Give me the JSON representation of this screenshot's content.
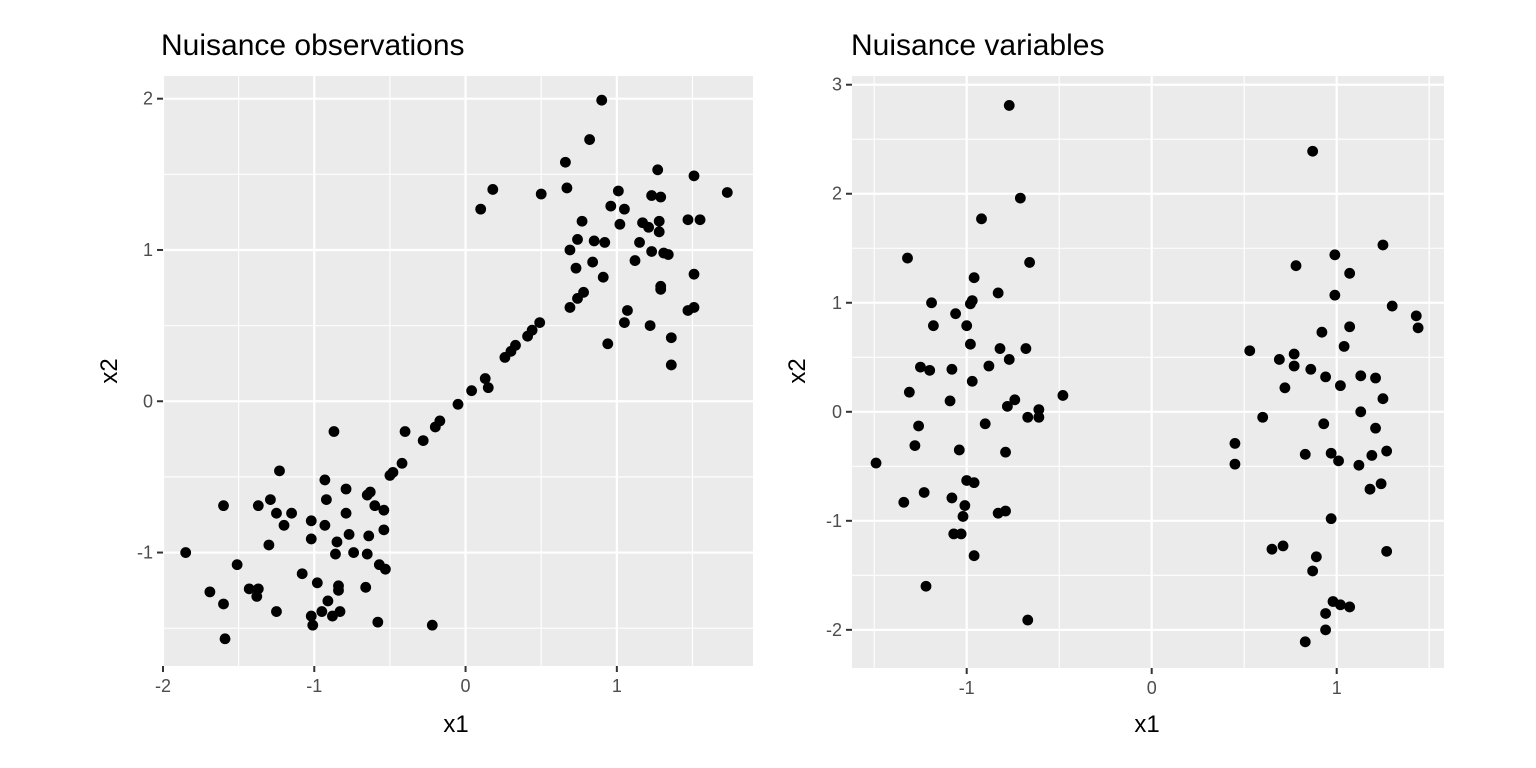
{
  "chart_data": [
    {
      "type": "scatter",
      "title": "Nuisance observations",
      "xlabel": "x1",
      "ylabel": "x2",
      "xlim": [
        -2.0,
        1.9
      ],
      "ylim": [
        -1.75,
        2.15
      ],
      "xticks": [
        -2,
        -1,
        0,
        1
      ],
      "yticks": [
        -1,
        0,
        1,
        2
      ],
      "xtick_labels": [
        "-2",
        "-1",
        "0",
        "1"
      ],
      "ytick_labels": [
        "-1",
        "0",
        "1",
        "2"
      ],
      "grid": true,
      "point_color": "#000000",
      "panel_color": "#ebebeb",
      "points": [
        [
          0.9,
          1.99
        ],
        [
          0.82,
          1.73
        ],
        [
          0.66,
          1.58
        ],
        [
          1.27,
          1.53
        ],
        [
          0.67,
          1.41
        ],
        [
          0.18,
          1.4
        ],
        [
          1.51,
          1.49
        ],
        [
          1.73,
          1.38
        ],
        [
          0.5,
          1.37
        ],
        [
          1.01,
          1.39
        ],
        [
          0.1,
          1.27
        ],
        [
          0.96,
          1.29
        ],
        [
          1.05,
          1.27
        ],
        [
          1.23,
          1.36
        ],
        [
          1.29,
          1.35
        ],
        [
          1.47,
          1.2
        ],
        [
          1.55,
          1.2
        ],
        [
          0.77,
          1.19
        ],
        [
          1.02,
          1.17
        ],
        [
          1.17,
          1.18
        ],
        [
          1.21,
          1.15
        ],
        [
          1.28,
          1.19
        ],
        [
          1.28,
          1.12
        ],
        [
          0.74,
          1.07
        ],
        [
          0.85,
          1.06
        ],
        [
          0.92,
          1.05
        ],
        [
          1.15,
          1.05
        ],
        [
          0.69,
          1.0
        ],
        [
          1.23,
          0.99
        ],
        [
          1.31,
          0.98
        ],
        [
          1.34,
          0.97
        ],
        [
          0.84,
          0.92
        ],
        [
          1.12,
          0.93
        ],
        [
          0.73,
          0.88
        ],
        [
          1.51,
          0.84
        ],
        [
          0.91,
          0.82
        ],
        [
          1.29,
          0.76
        ],
        [
          1.29,
          0.74
        ],
        [
          0.78,
          0.72
        ],
        [
          0.74,
          0.68
        ],
        [
          0.69,
          0.62
        ],
        [
          1.07,
          0.6
        ],
        [
          1.47,
          0.6
        ],
        [
          1.51,
          0.62
        ],
        [
          1.05,
          0.52
        ],
        [
          1.22,
          0.5
        ],
        [
          0.94,
          0.38
        ],
        [
          1.36,
          0.42
        ],
        [
          1.36,
          0.24
        ],
        [
          0.49,
          0.52
        ],
        [
          0.44,
          0.47
        ],
        [
          0.41,
          0.43
        ],
        [
          0.33,
          0.37
        ],
        [
          0.3,
          0.33
        ],
        [
          0.26,
          0.29
        ],
        [
          0.13,
          0.15
        ],
        [
          0.15,
          0.09
        ],
        [
          0.04,
          0.07
        ],
        [
          -0.05,
          -0.02
        ],
        [
          -0.17,
          -0.13
        ],
        [
          -0.2,
          -0.17
        ],
        [
          -0.28,
          -0.26
        ],
        [
          -0.4,
          -0.2
        ],
        [
          -0.42,
          -0.41
        ],
        [
          -0.48,
          -0.47
        ],
        [
          -0.5,
          -0.49
        ],
        [
          -0.87,
          -0.2
        ],
        [
          -1.23,
          -0.46
        ],
        [
          -0.93,
          -0.52
        ],
        [
          -0.79,
          -0.58
        ],
        [
          -0.63,
          -0.6
        ],
        [
          -0.65,
          -0.62
        ],
        [
          -0.92,
          -0.65
        ],
        [
          -1.29,
          -0.65
        ],
        [
          -1.37,
          -0.69
        ],
        [
          -1.6,
          -0.69
        ],
        [
          -0.6,
          -0.69
        ],
        [
          -0.54,
          -0.72
        ],
        [
          -1.25,
          -0.74
        ],
        [
          -1.15,
          -0.74
        ],
        [
          -0.79,
          -0.74
        ],
        [
          -1.02,
          -0.79
        ],
        [
          -0.93,
          -0.82
        ],
        [
          -1.2,
          -0.82
        ],
        [
          -0.54,
          -0.85
        ],
        [
          -0.77,
          -0.88
        ],
        [
          -0.64,
          -0.89
        ],
        [
          -1.02,
          -0.91
        ],
        [
          -0.85,
          -0.93
        ],
        [
          -1.3,
          -0.95
        ],
        [
          -0.74,
          -1.0
        ],
        [
          -0.86,
          -1.01
        ],
        [
          -0.65,
          -1.01
        ],
        [
          -1.85,
          -1.0
        ],
        [
          -1.51,
          -1.08
        ],
        [
          -0.57,
          -1.08
        ],
        [
          -0.53,
          -1.11
        ],
        [
          -1.08,
          -1.14
        ],
        [
          -0.98,
          -1.2
        ],
        [
          -0.84,
          -1.22
        ],
        [
          -0.66,
          -1.23
        ],
        [
          -1.43,
          -1.24
        ],
        [
          -1.37,
          -1.24
        ],
        [
          -1.69,
          -1.26
        ],
        [
          -0.84,
          -1.25
        ],
        [
          -1.38,
          -1.29
        ],
        [
          -0.91,
          -1.32
        ],
        [
          -1.6,
          -1.34
        ],
        [
          -1.25,
          -1.39
        ],
        [
          -0.95,
          -1.39
        ],
        [
          -0.83,
          -1.39
        ],
        [
          -1.02,
          -1.42
        ],
        [
          -0.88,
          -1.42
        ],
        [
          -0.58,
          -1.46
        ],
        [
          -1.01,
          -1.48
        ],
        [
          -0.22,
          -1.48
        ],
        [
          -1.59,
          -1.57
        ]
      ]
    },
    {
      "type": "scatter",
      "title": "Nuisance variables",
      "xlabel": "x1",
      "ylabel": "x2",
      "xlim": [
        -1.62,
        1.58
      ],
      "ylim": [
        -2.35,
        3.08
      ],
      "xticks": [
        -1,
        0,
        1
      ],
      "yticks": [
        -2,
        -1,
        0,
        1,
        2,
        3
      ],
      "xtick_labels": [
        "-1",
        "0",
        "1"
      ],
      "ytick_labels": [
        "-2",
        "-1",
        "0",
        "1",
        "2",
        "3"
      ],
      "grid": true,
      "point_color": "#000000",
      "panel_color": "#ebebeb",
      "points": [
        [
          -0.77,
          2.81
        ],
        [
          -0.71,
          1.96
        ],
        [
          -0.92,
          1.77
        ],
        [
          -1.32,
          1.41
        ],
        [
          -0.66,
          1.37
        ],
        [
          -0.96,
          1.23
        ],
        [
          -0.83,
          1.09
        ],
        [
          -0.97,
          1.02
        ],
        [
          -0.98,
          0.99
        ],
        [
          -1.19,
          1.0
        ],
        [
          -1.06,
          0.9
        ],
        [
          -1.0,
          0.79
        ],
        [
          -1.18,
          0.79
        ],
        [
          -0.98,
          0.62
        ],
        [
          -0.82,
          0.58
        ],
        [
          -0.68,
          0.58
        ],
        [
          -0.77,
          0.48
        ],
        [
          -0.88,
          0.42
        ],
        [
          -1.25,
          0.41
        ],
        [
          -1.2,
          0.38
        ],
        [
          -1.08,
          0.39
        ],
        [
          -0.97,
          0.28
        ],
        [
          -1.31,
          0.18
        ],
        [
          -0.48,
          0.15
        ],
        [
          -0.74,
          0.11
        ],
        [
          -1.09,
          0.1
        ],
        [
          -0.78,
          0.05
        ],
        [
          -0.61,
          0.02
        ],
        [
          -0.67,
          -0.05
        ],
        [
          -0.61,
          -0.05
        ],
        [
          -0.9,
          -0.11
        ],
        [
          -1.26,
          -0.13
        ],
        [
          -1.04,
          -0.35
        ],
        [
          -1.28,
          -0.31
        ],
        [
          -0.79,
          -0.37
        ],
        [
          -1.49,
          -0.47
        ],
        [
          -1.0,
          -0.63
        ],
        [
          -0.96,
          -0.65
        ],
        [
          -1.23,
          -0.74
        ],
        [
          -1.08,
          -0.79
        ],
        [
          -1.34,
          -0.83
        ],
        [
          -1.01,
          -0.86
        ],
        [
          -0.79,
          -0.91
        ],
        [
          -0.83,
          -0.93
        ],
        [
          -1.02,
          -0.96
        ],
        [
          -1.07,
          -1.12
        ],
        [
          -1.03,
          -1.12
        ],
        [
          -0.96,
          -1.32
        ],
        [
          -1.22,
          -1.6
        ],
        [
          -0.67,
          -1.91
        ],
        [
          0.87,
          2.39
        ],
        [
          1.25,
          1.53
        ],
        [
          0.99,
          1.44
        ],
        [
          0.78,
          1.34
        ],
        [
          1.07,
          1.27
        ],
        [
          0.99,
          1.07
        ],
        [
          1.3,
          0.97
        ],
        [
          1.43,
          0.88
        ],
        [
          1.44,
          0.77
        ],
        [
          1.07,
          0.78
        ],
        [
          0.92,
          0.73
        ],
        [
          1.04,
          0.6
        ],
        [
          0.53,
          0.56
        ],
        [
          0.77,
          0.53
        ],
        [
          0.69,
          0.48
        ],
        [
          0.77,
          0.42
        ],
        [
          0.86,
          0.39
        ],
        [
          0.94,
          0.32
        ],
        [
          1.13,
          0.33
        ],
        [
          1.21,
          0.31
        ],
        [
          1.02,
          0.24
        ],
        [
          0.72,
          0.22
        ],
        [
          1.25,
          0.12
        ],
        [
          1.13,
          0.0
        ],
        [
          0.6,
          -0.05
        ],
        [
          0.93,
          -0.11
        ],
        [
          1.21,
          -0.15
        ],
        [
          0.45,
          -0.29
        ],
        [
          1.27,
          -0.36
        ],
        [
          0.97,
          -0.38
        ],
        [
          0.83,
          -0.39
        ],
        [
          1.19,
          -0.4
        ],
        [
          1.01,
          -0.45
        ],
        [
          0.45,
          -0.48
        ],
        [
          1.12,
          -0.49
        ],
        [
          1.24,
          -0.66
        ],
        [
          1.18,
          -0.71
        ],
        [
          0.97,
          -0.98
        ],
        [
          0.71,
          -1.23
        ],
        [
          0.65,
          -1.26
        ],
        [
          1.27,
          -1.28
        ],
        [
          0.89,
          -1.33
        ],
        [
          0.87,
          -1.46
        ],
        [
          0.98,
          -1.74
        ],
        [
          1.02,
          -1.77
        ],
        [
          1.07,
          -1.79
        ],
        [
          0.94,
          -1.85
        ],
        [
          0.94,
          -2.0
        ],
        [
          0.83,
          -2.11
        ]
      ]
    }
  ]
}
